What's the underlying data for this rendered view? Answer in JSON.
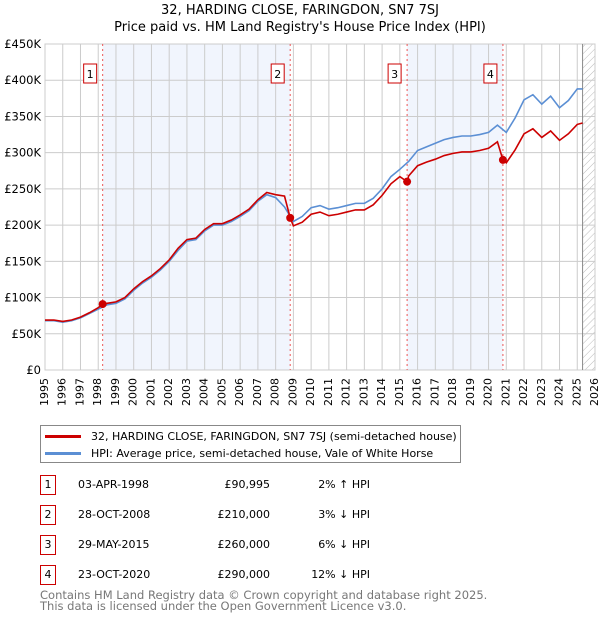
{
  "chart_data": {
    "type": "line",
    "title": "32, HARDING CLOSE, FARINGDON, SN7 7SJ",
    "subtitle": "Price paid vs. HM Land Registry's House Price Index (HPI)",
    "xlim": [
      1995,
      2026
    ],
    "ylim": [
      0,
      450000
    ],
    "x_ticks": [
      "1995",
      "1996",
      "1997",
      "1998",
      "1999",
      "2000",
      "2001",
      "2002",
      "2003",
      "2004",
      "2005",
      "2006",
      "2007",
      "2008",
      "2009",
      "2010",
      "2011",
      "2012",
      "2013",
      "2014",
      "2015",
      "2016",
      "2017",
      "2018",
      "2019",
      "2020",
      "2021",
      "2022",
      "2023",
      "2024",
      "2025",
      "2026"
    ],
    "y_ticks": [
      {
        "v": 0,
        "label": "£0"
      },
      {
        "v": 50000,
        "label": "£50K"
      },
      {
        "v": 100000,
        "label": "£100K"
      },
      {
        "v": 150000,
        "label": "£150K"
      },
      {
        "v": 200000,
        "label": "£200K"
      },
      {
        "v": 250000,
        "label": "£250K"
      },
      {
        "v": 300000,
        "label": "£300K"
      },
      {
        "v": 350000,
        "label": "£350K"
      },
      {
        "v": 400000,
        "label": "£400K"
      },
      {
        "v": 450000,
        "label": "£450K"
      }
    ],
    "grid": true,
    "shaded_ranges": [
      [
        1998.25,
        2008.82
      ],
      [
        2015.41,
        2020.81
      ]
    ],
    "forecast_hatch_from": 2025.3,
    "series": [
      {
        "name": "32, HARDING CLOSE, FARINGDON, SN7 7SJ (semi-detached house)",
        "color": "#cc0000",
        "x": [
          1995,
          1995.5,
          1996,
          1996.5,
          1997,
          1997.5,
          1998,
          1998.25,
          1998.5,
          1999,
          1999.5,
          2000,
          2000.5,
          2001,
          2001.5,
          2002,
          2002.5,
          2003,
          2003.5,
          2004,
          2004.5,
          2005,
          2005.5,
          2006,
          2006.5,
          2007,
          2007.5,
          2008,
          2008.5,
          2008.82,
          2009,
          2009.5,
          2010,
          2010.5,
          2011,
          2011.5,
          2012,
          2012.5,
          2013,
          2013.5,
          2014,
          2014.5,
          2015,
          2015.41,
          2015.5,
          2016,
          2016.5,
          2017,
          2017.5,
          2018,
          2018.5,
          2019,
          2019.5,
          2020,
          2020.5,
          2020.81,
          2021,
          2021.5,
          2022,
          2022.5,
          2023,
          2023.5,
          2024,
          2024.5,
          2025,
          2025.3
        ],
        "y": [
          69000,
          69000,
          67000,
          69000,
          73000,
          79000,
          86000,
          90995,
          92000,
          94000,
          100000,
          112000,
          122000,
          130000,
          140000,
          152000,
          168000,
          180000,
          182000,
          194000,
          202000,
          202000,
          207000,
          214000,
          222000,
          235000,
          245000,
          242000,
          240000,
          210000,
          199000,
          204000,
          215000,
          218000,
          213000,
          215000,
          218000,
          221000,
          221000,
          228000,
          241000,
          257000,
          267000,
          260000,
          268000,
          282000,
          287000,
          291000,
          296000,
          299000,
          301000,
          301000,
          303000,
          306000,
          315000,
          290000,
          286000,
          304000,
          326000,
          333000,
          321000,
          330000,
          317000,
          326000,
          339000,
          341000
        ]
      },
      {
        "name": "HPI: Average price, semi-detached house, Vale of White Horse",
        "color": "#5b8fd4",
        "x": [
          1995,
          1995.5,
          1996,
          1996.5,
          1997,
          1997.5,
          1998,
          1998.5,
          1999,
          1999.5,
          2000,
          2000.5,
          2001,
          2001.5,
          2002,
          2002.5,
          2003,
          2003.5,
          2004,
          2004.5,
          2005,
          2005.5,
          2006,
          2006.5,
          2007,
          2007.5,
          2008,
          2008.5,
          2009,
          2009.5,
          2010,
          2010.5,
          2011,
          2011.5,
          2012,
          2012.5,
          2013,
          2013.5,
          2014,
          2014.5,
          2015,
          2015.5,
          2016,
          2016.5,
          2017,
          2017.5,
          2018,
          2018.5,
          2019,
          2019.5,
          2020,
          2020.5,
          2021,
          2021.5,
          2022,
          2022.5,
          2023,
          2023.5,
          2024,
          2024.5,
          2025,
          2025.3
        ],
        "y": [
          68000,
          68000,
          66000,
          68000,
          72000,
          78000,
          84000,
          90000,
          92000,
          98000,
          110000,
          120000,
          128000,
          138000,
          150000,
          165000,
          178000,
          180000,
          192000,
          200000,
          200000,
          205000,
          212000,
          220000,
          233000,
          242000,
          238000,
          225000,
          205000,
          212000,
          224000,
          227000,
          222000,
          224000,
          227000,
          230000,
          230000,
          237000,
          250000,
          267000,
          277000,
          288000,
          303000,
          308000,
          313000,
          318000,
          321000,
          323000,
          323000,
          325000,
          328000,
          338000,
          328000,
          348000,
          373000,
          380000,
          367000,
          378000,
          362000,
          372000,
          388000,
          388000
        ]
      }
    ],
    "sales": [
      {
        "n": "1",
        "date": "03-APR-1998",
        "x": 1998.25,
        "price": "£90,995",
        "value": 90995,
        "hpi": "2% ↑ HPI"
      },
      {
        "n": "2",
        "date": "28-OCT-2008",
        "x": 2008.82,
        "price": "£210,000",
        "value": 210000,
        "hpi": "3% ↓ HPI"
      },
      {
        "n": "3",
        "date": "29-MAY-2015",
        "x": 2015.41,
        "price": "£260,000",
        "value": 260000,
        "hpi": "6% ↓ HPI"
      },
      {
        "n": "4",
        "date": "23-OCT-2020",
        "x": 2020.81,
        "price": "£290,000",
        "value": 290000,
        "hpi": "12% ↓ HPI"
      }
    ]
  },
  "footer": {
    "line1": "Contains HM Land Registry data © Crown copyright and database right 2025.",
    "line2": "This data is licensed under the Open Government Licence v3.0."
  }
}
